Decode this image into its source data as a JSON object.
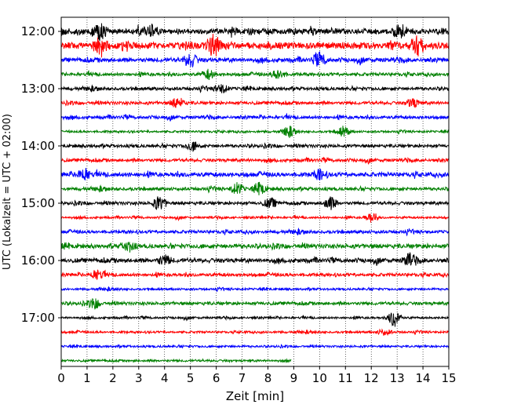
{
  "chart_data": {
    "type": "line",
    "title": "",
    "xlabel": "Zeit  [min]",
    "ylabel": "UTC (Lokalzeit = UTC + 02:00)",
    "xlim": [
      0,
      15
    ],
    "x_ticks": [
      "0",
      "1",
      "2",
      "3",
      "4",
      "5",
      "6",
      "7",
      "8",
      "9",
      "10",
      "11",
      "12",
      "13",
      "14",
      "15"
    ],
    "y_ticks": [
      "12:00",
      "13:00",
      "14:00",
      "15:00",
      "16:00",
      "17:00"
    ],
    "grid": "vertical dotted",
    "trace_colors": [
      "#000000",
      "#ff0000",
      "#0000ff",
      "#008000"
    ],
    "rows": [
      {
        "start": "12:00",
        "color": "#000000",
        "end_min": 15,
        "amplitude": 5
      },
      {
        "start": "12:15",
        "color": "#ff0000",
        "end_min": 15,
        "amplitude": 6
      },
      {
        "start": "12:30",
        "color": "#0000ff",
        "end_min": 15,
        "amplitude": 4
      },
      {
        "start": "12:45",
        "color": "#008000",
        "end_min": 15,
        "amplitude": 3
      },
      {
        "start": "13:00",
        "color": "#000000",
        "end_min": 15,
        "amplitude": 3
      },
      {
        "start": "13:15",
        "color": "#ff0000",
        "end_min": 15,
        "amplitude": 3
      },
      {
        "start": "13:30",
        "color": "#0000ff",
        "end_min": 15,
        "amplitude": 3
      },
      {
        "start": "13:45",
        "color": "#008000",
        "end_min": 15,
        "amplitude": 2
      },
      {
        "start": "14:00",
        "color": "#000000",
        "end_min": 15,
        "amplitude": 3
      },
      {
        "start": "14:15",
        "color": "#ff0000",
        "end_min": 15,
        "amplitude": 3
      },
      {
        "start": "14:30",
        "color": "#0000ff",
        "end_min": 15,
        "amplitude": 4
      },
      {
        "start": "14:45",
        "color": "#008000",
        "end_min": 15,
        "amplitude": 3
      },
      {
        "start": "15:00",
        "color": "#000000",
        "end_min": 15,
        "amplitude": 3
      },
      {
        "start": "15:15",
        "color": "#ff0000",
        "end_min": 15,
        "amplitude": 2
      },
      {
        "start": "15:30",
        "color": "#0000ff",
        "end_min": 15,
        "amplitude": 3
      },
      {
        "start": "15:45",
        "color": "#008000",
        "end_min": 15,
        "amplitude": 4
      },
      {
        "start": "16:00",
        "color": "#000000",
        "end_min": 15,
        "amplitude": 4
      },
      {
        "start": "16:15",
        "color": "#ff0000",
        "end_min": 15,
        "amplitude": 3
      },
      {
        "start": "16:30",
        "color": "#0000ff",
        "end_min": 15,
        "amplitude": 2
      },
      {
        "start": "16:45",
        "color": "#008000",
        "end_min": 15,
        "amplitude": 3
      },
      {
        "start": "17:00",
        "color": "#000000",
        "end_min": 15,
        "amplitude": 2
      },
      {
        "start": "17:15",
        "color": "#ff0000",
        "end_min": 15,
        "amplitude": 2
      },
      {
        "start": "17:30",
        "color": "#0000ff",
        "end_min": 15,
        "amplitude": 2
      },
      {
        "start": "17:45",
        "color": "#008000",
        "end_min": 8.9,
        "amplitude": 2
      }
    ],
    "events": [
      {
        "row": 0,
        "x": 1.5,
        "amp": 9
      },
      {
        "row": 0,
        "x": 3.5,
        "amp": 7
      },
      {
        "row": 0,
        "x": 13.1,
        "amp": 9
      },
      {
        "row": 1,
        "x": 1.5,
        "amp": 10
      },
      {
        "row": 1,
        "x": 5.9,
        "amp": 12
      },
      {
        "row": 1,
        "x": 13.8,
        "amp": 12
      },
      {
        "row": 2,
        "x": 5.0,
        "amp": 9
      },
      {
        "row": 2,
        "x": 10.0,
        "amp": 8
      },
      {
        "row": 3,
        "x": 5.7,
        "amp": 6
      },
      {
        "row": 3,
        "x": 8.4,
        "amp": 6
      },
      {
        "row": 4,
        "x": 6.2,
        "amp": 6
      },
      {
        "row": 5,
        "x": 4.5,
        "amp": 7
      },
      {
        "row": 5,
        "x": 13.6,
        "amp": 6
      },
      {
        "row": 7,
        "x": 8.8,
        "amp": 6
      },
      {
        "row": 7,
        "x": 10.9,
        "amp": 7
      },
      {
        "row": 8,
        "x": 5.1,
        "amp": 6
      },
      {
        "row": 10,
        "x": 0.9,
        "amp": 8
      },
      {
        "row": 10,
        "x": 10.0,
        "amp": 6
      },
      {
        "row": 11,
        "x": 6.8,
        "amp": 7
      },
      {
        "row": 11,
        "x": 7.7,
        "amp": 7
      },
      {
        "row": 12,
        "x": 3.8,
        "amp": 9
      },
      {
        "row": 12,
        "x": 8.1,
        "amp": 6
      },
      {
        "row": 12,
        "x": 10.4,
        "amp": 8
      },
      {
        "row": 13,
        "x": 12.0,
        "amp": 6
      },
      {
        "row": 15,
        "x": 2.6,
        "amp": 6
      },
      {
        "row": 16,
        "x": 4.0,
        "amp": 6
      },
      {
        "row": 16,
        "x": 13.5,
        "amp": 8
      },
      {
        "row": 17,
        "x": 1.4,
        "amp": 7
      },
      {
        "row": 19,
        "x": 1.3,
        "amp": 6
      },
      {
        "row": 20,
        "x": 12.9,
        "amp": 12
      },
      {
        "row": 21,
        "x": 12.5,
        "amp": 4
      }
    ]
  }
}
